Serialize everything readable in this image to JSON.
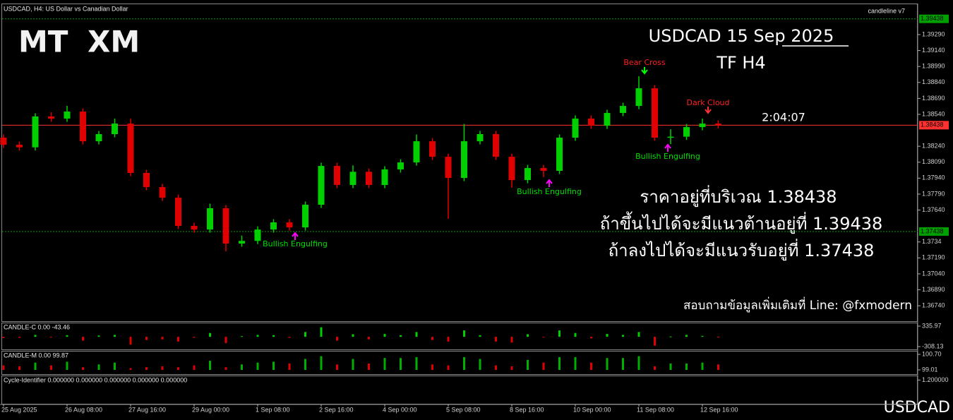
{
  "header": {
    "symbol_info": "USDCAD, H4:  US Dollar vs Canadian Dollar",
    "indicator_name": "candleline v7"
  },
  "logo": {
    "left": "MT",
    "right": "XM"
  },
  "countdown": "2:04:07",
  "notes": [
    "ราคาอยู่ที่บริเวณ 1.38438",
    "ถ้าขึ้นไปได้จะมีแนวต้านอยู่ที่ 1.39438",
    "ถ้าลงไปได้จะมีแนวรับอยู่ที่ 1.37438"
  ],
  "contact": "สอบถามข้อมูลเพิ่มเติมที่ Line: @fxmodern",
  "footer_symbol": "USDCAD",
  "chart_data": [
    {
      "type": "candlestick",
      "title": "USDCAD  15 Sep  2025",
      "subtitle": "TF H4",
      "annotations": [
        "Bear Cross",
        "Dark Cloud",
        "Bullish Engulfing",
        "Bullish Engulfing",
        "Bullish Engulfing"
      ],
      "categories": [
        "25 Aug 2025",
        null,
        null,
        null,
        "26 Aug 08:00",
        null,
        null,
        null,
        "27 Aug 16:00",
        null,
        null,
        null,
        "29 Aug 00:00",
        null,
        null,
        null,
        "1 Sep 08:00",
        null,
        null,
        null,
        "2 Sep 16:00",
        null,
        null,
        null,
        "4 Sep 00:00",
        null,
        null,
        null,
        "5 Sep 08:00",
        null,
        null,
        null,
        "8 Sep 16:00",
        null,
        null,
        null,
        "10 Sep 00:00",
        null,
        null,
        null,
        "11 Sep 08:00",
        null,
        null,
        null,
        "12 Sep 16:00",
        null
      ],
      "open": [
        1.38321,
        1.38254,
        1.3823,
        1.3852,
        1.385,
        1.38566,
        1.38287,
        1.38354,
        1.38453,
        1.37989,
        1.37856,
        1.37756,
        1.37491,
        1.37457,
        1.37657,
        1.37325,
        1.3735,
        1.37457,
        1.37524,
        1.37477,
        1.3769,
        1.38055,
        1.37876,
        1.38,
        1.37876,
        1.38022,
        1.38088,
        1.38287,
        1.38141,
        1.37942,
        1.38287,
        1.38354,
        1.38141,
        1.37922,
        1.38035,
        1.38009,
        1.38321,
        1.385,
        1.38433,
        1.38553,
        1.38619,
        1.38785,
        1.38321,
        1.3833,
        1.3842,
        1.38453
      ],
      "high": [
        1.38351,
        1.38284,
        1.3855,
        1.3856,
        1.3862,
        1.38596,
        1.38384,
        1.385,
        1.385,
        1.38019,
        1.37886,
        1.37786,
        1.37521,
        1.377,
        1.37687,
        1.374,
        1.37487,
        1.37554,
        1.37554,
        1.3772,
        1.38085,
        1.38085,
        1.3806,
        1.3803,
        1.38052,
        1.38118,
        1.3835,
        1.38317,
        1.38171,
        1.3845,
        1.38384,
        1.38384,
        1.38171,
        1.38065,
        1.38065,
        1.38351,
        1.3853,
        1.3853,
        1.38583,
        1.38649,
        1.38898,
        1.38815,
        1.384,
        1.3845,
        1.385,
        1.38483
      ],
      "low": [
        1.38224,
        1.382,
        1.382,
        1.3847,
        1.3847,
        1.38257,
        1.38257,
        1.38324,
        1.37959,
        1.37826,
        1.37726,
        1.37461,
        1.37427,
        1.37427,
        1.3725,
        1.37295,
        1.3732,
        1.37427,
        1.37447,
        1.37447,
        1.3766,
        1.37846,
        1.37846,
        1.37846,
        1.37846,
        1.37992,
        1.38058,
        1.38111,
        1.37557,
        1.37912,
        1.38257,
        1.38111,
        1.3785,
        1.37892,
        1.3795,
        1.37979,
        1.38291,
        1.38403,
        1.38403,
        1.38523,
        1.38589,
        1.38291,
        1.3826,
        1.383,
        1.3839,
        1.38408
      ],
      "close": [
        1.38254,
        1.3823,
        1.3852,
        1.385,
        1.38566,
        1.38287,
        1.38354,
        1.38453,
        1.37989,
        1.37856,
        1.37756,
        1.37491,
        1.37457,
        1.37657,
        1.37325,
        1.3735,
        1.37457,
        1.37524,
        1.37477,
        1.3769,
        1.38055,
        1.37876,
        1.38,
        1.37876,
        1.38022,
        1.38088,
        1.38287,
        1.38141,
        1.37942,
        1.38287,
        1.38354,
        1.38141,
        1.37922,
        1.38035,
        1.38009,
        1.38321,
        1.385,
        1.38433,
        1.38553,
        1.38619,
        1.38785,
        1.38321,
        1.3833,
        1.3842,
        1.38453,
        1.38438
      ],
      "up_color": "#00d000",
      "down_color": "#e00000",
      "levels": [
        {
          "value": 1.39438,
          "color": "#00a000"
        },
        {
          "value": 1.38438,
          "color": "#ff3030"
        },
        {
          "value": 1.37438,
          "color": "#00a000"
        }
      ],
      "ylim": [
        1.36595,
        1.39582
      ],
      "yticks": [
        {
          "value": 1.3929,
          "label": "1.39290"
        },
        {
          "value": 1.3914,
          "label": "1.39140"
        },
        {
          "value": 1.3899,
          "label": "1.38990"
        },
        {
          "value": 1.3884,
          "label": "1.38840"
        },
        {
          "value": 1.3869,
          "label": "1.38690"
        },
        {
          "value": 1.3854,
          "label": "1.38540"
        },
        {
          "value": 1.3824,
          "label": "1.38240"
        },
        {
          "value": 1.3809,
          "label": "1.38090"
        },
        {
          "value": 1.3794,
          "label": "1.37940"
        },
        {
          "value": 1.3779,
          "label": "1.37790"
        },
        {
          "value": 1.3764,
          "label": "1.37640"
        },
        1.3734,
        {
          "value": 1.3719,
          "label": "1.37190"
        },
        {
          "value": 1.3704,
          "label": "1.37040"
        },
        {
          "value": 1.3689,
          "label": "1.36890"
        },
        {
          "value": 1.3674,
          "label": "1.36740"
        }
      ]
    },
    {
      "type": "bar",
      "title": "CANDLE-C 0.00 -43.46",
      "values": [
        -40,
        -30,
        60,
        -20,
        50,
        -120,
        40,
        60,
        -250,
        -100,
        -80,
        -150,
        -30,
        120,
        -200,
        20,
        60,
        50,
        -30,
        150,
        300,
        -120,
        80,
        -80,
        90,
        50,
        150,
        -100,
        -150,
        200,
        50,
        -150,
        -180,
        80,
        -20,
        200,
        120,
        -50,
        90,
        60,
        150,
        -280,
        10,
        60,
        30,
        -20
      ],
      "up_color": "#00d000",
      "down_color": "#e00000",
      "ylim": [
        -308.13,
        335.97
      ],
      "yticks": [
        335.97,
        -308.13
      ]
    },
    {
      "type": "bar",
      "title": "CANDLE-M 0.00 99.87",
      "values": [
        99.5,
        99.4,
        99.8,
        99.5,
        99.9,
        99.3,
        99.6,
        99.8,
        99.2,
        99.3,
        99.4,
        99.3,
        99.5,
        100.0,
        99.3,
        99.6,
        99.8,
        99.9,
        99.7,
        100.2,
        100.5,
        99.6,
        100.2,
        99.7,
        100.3,
        100.3,
        100.4,
        99.6,
        99.5,
        100.4,
        100.2,
        99.5,
        99.4,
        100.1,
        99.8,
        100.4,
        100.4,
        99.8,
        100.3,
        100.3,
        100.5,
        99.4,
        99.7,
        99.7,
        99.8,
        99.6
      ],
      "up_color": "#00b000",
      "down_color": "#e00000",
      "ylim": [
        99.01,
        100.7
      ],
      "yticks": [
        {
          "value": 100.7,
          "label": "100.70"
        },
        {
          "value": 99.01,
          "label": "99.01"
        }
      ]
    },
    {
      "type": "empty",
      "title": "Cycle-Identifier 0.000000 0.000000 0.000000 0.000000 0.000000",
      "ylim": [
        -1.0,
        1.3
      ],
      "yticks": [
        {
          "value": 1.2,
          "label": "1.200000"
        }
      ]
    }
  ]
}
